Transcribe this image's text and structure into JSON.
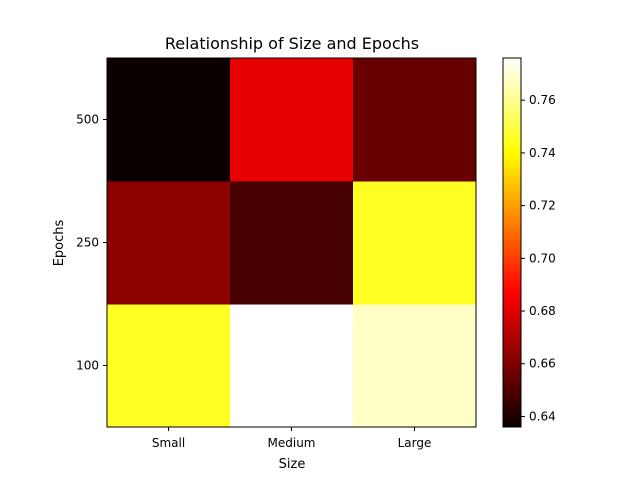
{
  "chart_data": {
    "type": "heatmap",
    "title": "Relationship of Size and Epochs",
    "xlabel": "Size",
    "ylabel": "Epochs",
    "x_categories": [
      "Small",
      "Medium",
      "Large"
    ],
    "y_categories": [
      "100",
      "250",
      "500"
    ],
    "values": [
      [
        0.745,
        0.776,
        0.768
      ],
      [
        0.662,
        0.648,
        0.745
      ],
      [
        0.636,
        0.68,
        0.655
      ]
    ],
    "colormap": "hot",
    "vmin": 0.636,
    "vmax": 0.776,
    "colorbar_ticks": [
      0.64,
      0.66,
      0.68,
      0.7,
      0.72,
      0.74,
      0.76
    ],
    "colorbar_tick_labels": [
      "0.64",
      "0.66",
      "0.68",
      "0.70",
      "0.72",
      "0.74",
      "0.76"
    ]
  }
}
